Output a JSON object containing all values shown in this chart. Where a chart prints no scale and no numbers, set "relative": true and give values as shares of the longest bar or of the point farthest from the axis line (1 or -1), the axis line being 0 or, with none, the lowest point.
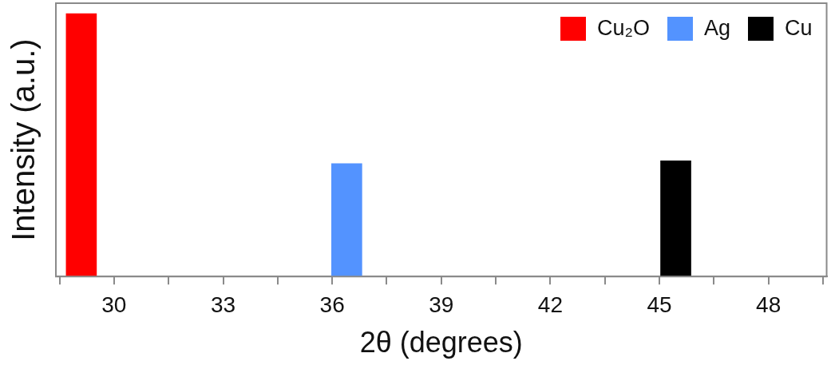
{
  "chart_data": {
    "type": "bar",
    "xlabel": "2θ (degrees)",
    "ylabel": "Intensity (a.u.)",
    "relative": true,
    "xlim": [
      28.4,
      49.6
    ],
    "xticks": [
      {
        "value": 28.5,
        "label": null
      },
      30,
      {
        "value": 31.5,
        "label": null
      },
      33,
      {
        "value": 34.5,
        "label": null
      },
      36,
      {
        "value": 37.5,
        "label": null
      },
      39,
      {
        "value": 40.5,
        "label": null
      },
      42,
      {
        "value": 43.5,
        "label": null
      },
      45,
      {
        "value": 46.5,
        "label": null
      },
      48,
      {
        "value": 49.5,
        "label": null
      }
    ],
    "series": [
      {
        "name": "Cu₂O",
        "color": "#ff0000",
        "x": [
          29.1
        ],
        "values": [
          1
        ]
      },
      {
        "name": "Ag",
        "color": "#5393ff",
        "x": [
          36.4
        ],
        "values": [
          0.43
        ]
      },
      {
        "name": "Cu",
        "color": "#000000",
        "x": [
          45.45
        ],
        "values": [
          0.44
        ]
      }
    ],
    "legend": "top right",
    "grid": false
  }
}
